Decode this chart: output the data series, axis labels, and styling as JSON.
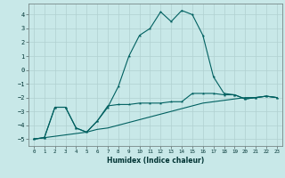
{
  "xlabel": "Humidex (Indice chaleur)",
  "ylabel": "",
  "bg_color": "#c8e8e8",
  "grid_color": "#b0d0d0",
  "line_color": "#006060",
  "xlim": [
    -0.5,
    23.5
  ],
  "ylim": [
    -5.5,
    4.8
  ],
  "xticks": [
    0,
    1,
    2,
    3,
    4,
    5,
    6,
    7,
    8,
    9,
    10,
    11,
    12,
    13,
    14,
    15,
    16,
    17,
    18,
    19,
    20,
    21,
    22,
    23
  ],
  "yticks": [
    -5,
    -4,
    -3,
    -2,
    -1,
    0,
    1,
    2,
    3,
    4
  ],
  "curve1_x": [
    0,
    1,
    2,
    3,
    4,
    5,
    6,
    7,
    8,
    9,
    10,
    11,
    12,
    13,
    14,
    15,
    16,
    17,
    18,
    19,
    20,
    21,
    22,
    23
  ],
  "curve1_y": [
    -5.0,
    -4.9,
    -2.7,
    -2.7,
    -4.2,
    -4.5,
    -3.7,
    -2.7,
    -1.2,
    1.0,
    2.5,
    3.0,
    4.2,
    3.5,
    4.3,
    4.0,
    2.5,
    -0.5,
    -1.7,
    -1.8,
    -2.1,
    -2.0,
    -1.9,
    -2.0
  ],
  "curve2_x": [
    0,
    1,
    2,
    3,
    4,
    5,
    6,
    7,
    8,
    9,
    10,
    11,
    12,
    13,
    14,
    15,
    16,
    17,
    18,
    19,
    20,
    21,
    22,
    23
  ],
  "curve2_y": [
    -5.0,
    -4.9,
    -2.7,
    -2.7,
    -4.2,
    -4.5,
    -3.7,
    -2.6,
    -2.5,
    -2.5,
    -2.4,
    -2.4,
    -2.4,
    -2.3,
    -2.3,
    -1.7,
    -1.7,
    -1.7,
    -1.8,
    -1.8,
    -2.1,
    -2.0,
    -1.9,
    -2.0
  ],
  "curve3_x": [
    0,
    1,
    2,
    3,
    4,
    5,
    6,
    7,
    8,
    9,
    10,
    11,
    12,
    13,
    14,
    15,
    16,
    17,
    18,
    19,
    20,
    21,
    22,
    23
  ],
  "curve3_y": [
    -5.0,
    -4.9,
    -4.8,
    -4.7,
    -4.6,
    -4.5,
    -4.3,
    -4.2,
    -4.0,
    -3.8,
    -3.6,
    -3.4,
    -3.2,
    -3.0,
    -2.8,
    -2.6,
    -2.4,
    -2.3,
    -2.2,
    -2.1,
    -2.0,
    -2.0,
    -1.9,
    -2.0
  ]
}
